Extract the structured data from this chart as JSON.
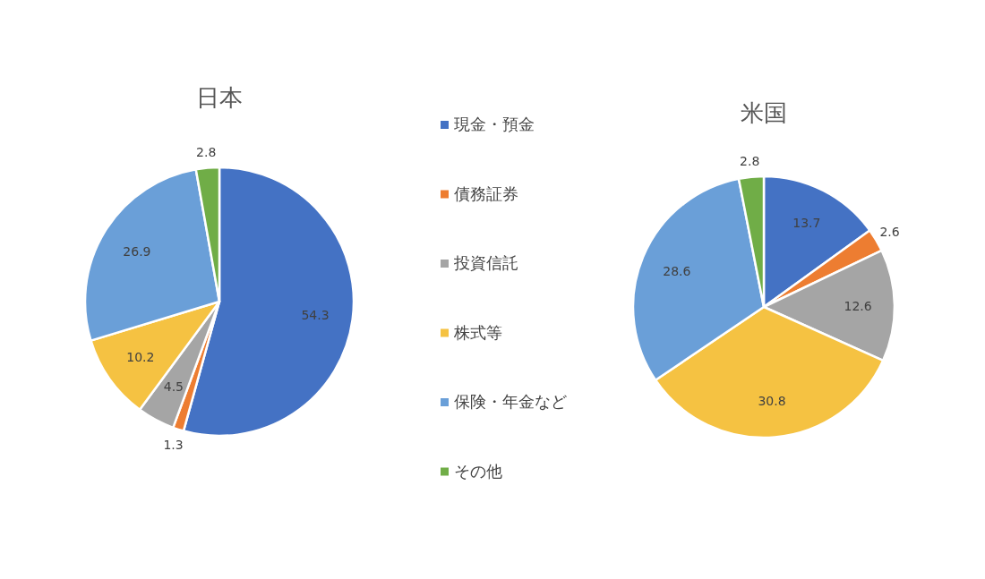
{
  "chart_data": [
    {
      "type": "pie",
      "title": "日本",
      "categories": [
        "現金・預金",
        "債務証券",
        "投資信託",
        "株式等",
        "保険・年金など",
        "その他"
      ],
      "values": [
        54.3,
        1.3,
        4.5,
        10.2,
        26.9,
        2.8
      ],
      "colors": [
        "#4472c4",
        "#ed7d31",
        "#a5a5a5",
        "#f5c242",
        "#6a9fd8",
        "#70ad47"
      ],
      "data_labels": true,
      "legend": "right"
    },
    {
      "type": "pie",
      "title": "米国",
      "values": [
        13.7,
        2.6,
        12.6,
        30.8,
        28.6,
        2.8
      ],
      "colors": [
        "#4472c4",
        "#ed7d31",
        "#a5a5a5",
        "#f5c242",
        "#6a9fd8",
        "#70ad47"
      ],
      "data_labels": true
    }
  ]
}
